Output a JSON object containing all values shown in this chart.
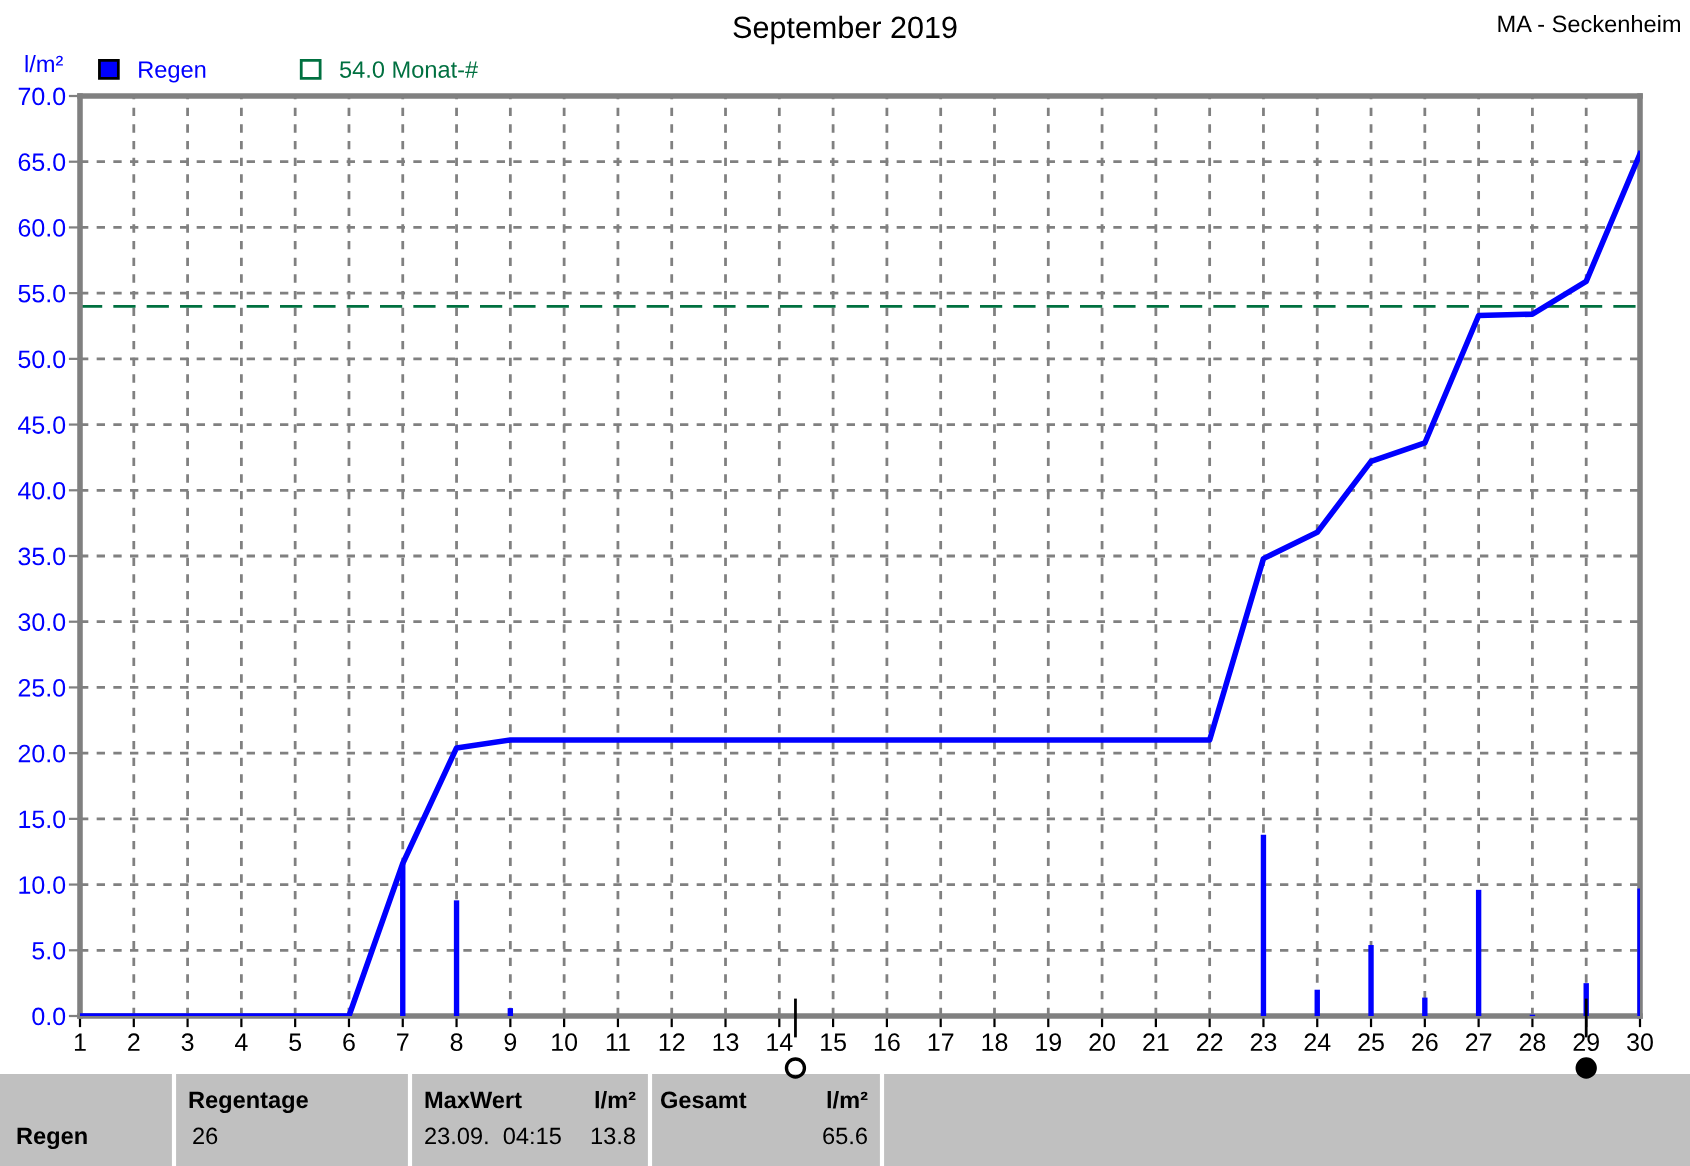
{
  "chart_data": {
    "type": "bar",
    "title": "September 2019",
    "subtitle": "MA - Seckenheim",
    "ylabel": "l/m²",
    "xlim": [
      1,
      30
    ],
    "xticks": [
      1,
      2,
      3,
      4,
      5,
      6,
      7,
      8,
      9,
      10,
      11,
      12,
      13,
      14,
      15,
      16,
      17,
      18,
      19,
      20,
      21,
      22,
      23,
      24,
      25,
      26,
      27,
      28,
      29,
      30
    ],
    "ylim": [
      0,
      70
    ],
    "yticks": [
      {
        "value": 0,
        "label": "0.0"
      },
      {
        "value": 5,
        "label": "5.0"
      },
      {
        "value": 10,
        "label": "10.0"
      },
      {
        "value": 15,
        "label": "15.0"
      },
      {
        "value": 20,
        "label": "20.0"
      },
      {
        "value": 25,
        "label": "25.0"
      },
      {
        "value": 30,
        "label": "30.0"
      },
      {
        "value": 35,
        "label": "35.0"
      },
      {
        "value": 40,
        "label": "40.0"
      },
      {
        "value": 45,
        "label": "45.0"
      },
      {
        "value": 50,
        "label": "50.0"
      },
      {
        "value": 55,
        "label": "55.0"
      },
      {
        "value": 60,
        "label": "60.0"
      },
      {
        "value": 65,
        "label": "65.0"
      },
      {
        "value": 70,
        "label": "70.0"
      }
    ],
    "series": [
      {
        "name": "Regen",
        "color": "#0000ff",
        "x": [
          7,
          8,
          9,
          23,
          24,
          25,
          26,
          27,
          28,
          29,
          30
        ],
        "values": [
          11.6,
          8.8,
          0.6,
          13.8,
          2.0,
          5.4,
          1.4,
          9.6,
          0.1,
          2.5,
          9.7
        ]
      },
      {
        "type": "line",
        "color": "#0000ff",
        "x": [
          1,
          2,
          3,
          4,
          5,
          6,
          7,
          8,
          9,
          10,
          11,
          12,
          13,
          14,
          15,
          16,
          17,
          18,
          19,
          20,
          21,
          22,
          23,
          24,
          25,
          26,
          27,
          28,
          29,
          30
        ],
        "values": [
          0,
          0,
          0,
          0,
          0,
          0,
          11.6,
          20.4,
          21.0,
          21.0,
          21.0,
          21.0,
          21.0,
          21.0,
          21.0,
          21.0,
          21.0,
          21.0,
          21.0,
          21.0,
          21.0,
          21.0,
          34.8,
          36.8,
          42.2,
          43.6,
          53.3,
          53.4,
          55.9,
          65.6
        ]
      }
    ],
    "ref_lines": [
      {
        "axis": "y",
        "value": 54.0,
        "label": "54.0 Monat-#",
        "color": "#007040",
        "line_style": "dashed"
      }
    ],
    "grid": true,
    "legend": "top left",
    "line_style": "solid",
    "marker": "none",
    "annotations": [
      "Regen",
      "Regentage",
      "26",
      "MaxWert",
      "l/m²",
      "23.09.  04:15",
      "13.8",
      "Gesamt",
      "l/m²",
      "65.6"
    ]
  }
}
